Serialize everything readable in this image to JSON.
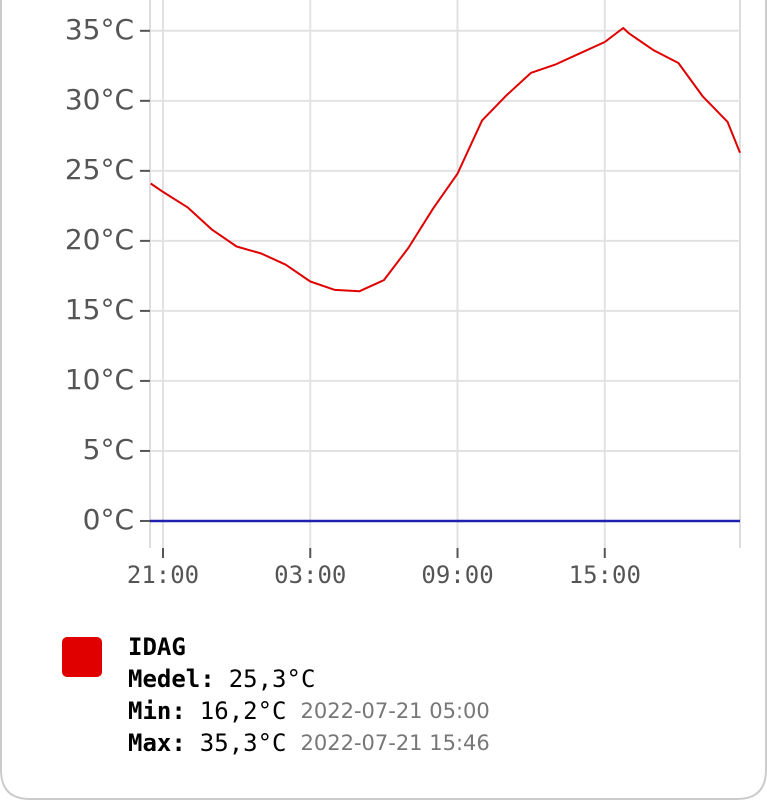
{
  "chart_data": {
    "type": "line",
    "x": [
      20.5,
      21,
      22,
      23,
      24,
      25,
      26,
      27,
      28,
      29,
      30,
      31,
      32,
      33,
      34,
      35,
      36,
      37,
      38,
      39,
      39.75,
      40,
      41,
      42,
      43,
      44,
      44.51
    ],
    "series": [
      {
        "name": "IDAG",
        "color": "#e00000",
        "values": [
          24.1,
          23.5,
          22.4,
          20.8,
          19.6,
          19.1,
          18.3,
          17.1,
          16.5,
          16.4,
          17.2,
          19.5,
          22.3,
          24.8,
          28.6,
          30.4,
          32,
          32.6,
          33.4,
          34.2,
          35.2,
          34.8,
          33.6,
          32.7,
          30.3,
          28.5,
          26.3
        ]
      }
    ],
    "zero_line": {
      "value": 0,
      "color": "#2020b0"
    },
    "xlim": [
      20.47,
      44.51
    ],
    "xticks": [
      {
        "value": 21,
        "label": "21:00"
      },
      {
        "value": 27,
        "label": "03:00"
      },
      {
        "value": 33,
        "label": "09:00"
      },
      {
        "value": 39,
        "label": "15:00"
      }
    ],
    "ylim": [
      -1.93,
      37.2
    ],
    "yticks": [
      {
        "value": 0,
        "label": "0°C"
      },
      {
        "value": 5,
        "label": "5°C"
      },
      {
        "value": 10,
        "label": "10°C"
      },
      {
        "value": 15,
        "label": "15°C"
      },
      {
        "value": 20,
        "label": "20°C"
      },
      {
        "value": 25,
        "label": "25°C"
      },
      {
        "value": 30,
        "label": "30°C"
      },
      {
        "value": 35,
        "label": "35°C"
      }
    ],
    "grid": true,
    "legend_stats": [
      {
        "label": "Medel:",
        "value": "25,3°C"
      },
      {
        "label": "Min:",
        "value": "16,2°C",
        "time": "2022-07-21 05:00"
      },
      {
        "label": "Max:",
        "value": "35,3°C",
        "time": "2022-07-21 15:46"
      }
    ]
  }
}
